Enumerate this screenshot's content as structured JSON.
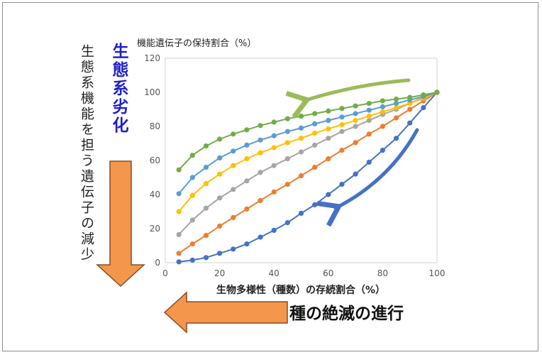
{
  "colors": {
    "series_blue": "#4472c4",
    "series_orange": "#ed7d31",
    "series_gray": "#a5a5a5",
    "series_yellow": "#ffc000",
    "series_lightblue": "#5b9bd5",
    "series_green": "#70ad47",
    "big_arrow_fill": "#f4964c",
    "big_arrow_stroke": "#8a4a20",
    "green_arrow": "#9bbb59",
    "blue_arrow": "#4472c4",
    "degrade_text": "#1f22c8"
  },
  "labels": {
    "left_vertical": "生態系機能を担う遺伝子の減少",
    "left_vertical_bold": "生態系劣化",
    "bottom_arrow_text": "種の絶滅の進行"
  },
  "chart_data": {
    "type": "line",
    "title": "",
    "ylabel": "機能遺伝子の保持割合（%）",
    "xlabel": "生物多様性（種数）の存続割合（%）",
    "xlim": [
      0,
      100
    ],
    "ylim": [
      0,
      120
    ],
    "xticks": [
      0,
      20,
      40,
      60,
      80,
      100
    ],
    "yticks": [
      0,
      20,
      40,
      60,
      80,
      100,
      120
    ],
    "grid": false,
    "x": [
      5,
      10,
      15,
      20,
      25,
      30,
      35,
      40,
      45,
      50,
      55,
      60,
      65,
      70,
      75,
      80,
      85,
      90,
      95,
      100
    ],
    "series": [
      {
        "color": "#4472c4",
        "values": [
          0.5,
          1.5,
          3,
          5.5,
          8,
          11,
          15,
          19,
          23.5,
          29,
          34,
          40,
          46,
          52,
          59,
          66,
          73,
          82,
          91,
          100
        ]
      },
      {
        "color": "#ed7d31",
        "values": [
          5.5,
          11,
          16,
          21.5,
          26.5,
          31.5,
          36.5,
          41.5,
          46,
          51,
          56,
          61,
          66,
          70.5,
          75.5,
          80,
          85,
          90,
          95,
          100
        ]
      },
      {
        "color": "#a5a5a5",
        "values": [
          16.5,
          25,
          32,
          38,
          43,
          48,
          53,
          57,
          61,
          65,
          69,
          73,
          77,
          80,
          83.5,
          87,
          90,
          93.5,
          97,
          100
        ]
      },
      {
        "color": "#ffc000",
        "values": [
          30,
          39.5,
          46.5,
          52,
          57,
          61,
          64.5,
          67.5,
          70.5,
          73,
          76,
          78.5,
          81,
          83.5,
          86,
          88.5,
          91,
          93.5,
          96.5,
          100
        ]
      },
      {
        "color": "#5b9bd5",
        "values": [
          40.5,
          50,
          56,
          61.5,
          65.5,
          69,
          72,
          74.5,
          77,
          79,
          81.5,
          83.5,
          85.5,
          87.5,
          89.5,
          91.5,
          93.5,
          95.5,
          97.5,
          100
        ]
      },
      {
        "color": "#70ad47",
        "values": [
          54.5,
          63,
          68.5,
          72.5,
          75.5,
          78,
          80.5,
          82.5,
          84.5,
          86,
          87.5,
          89,
          90.5,
          92,
          93.5,
          95,
          96,
          97,
          98.5,
          100
        ]
      }
    ]
  }
}
